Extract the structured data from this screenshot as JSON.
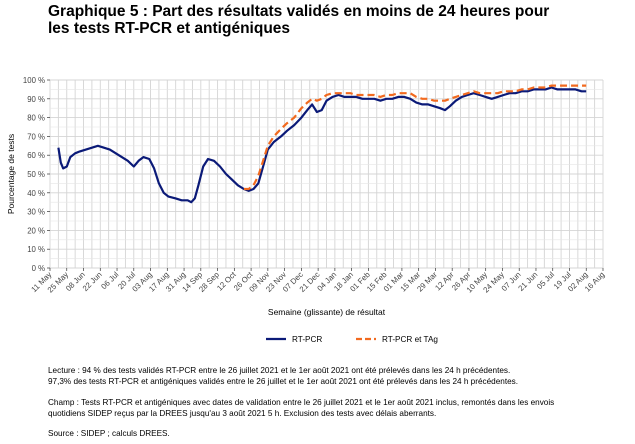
{
  "chart_data": {
    "type": "line",
    "title_line1": "Graphique 5 : Part des résultats validés en moins de 24 heures pour",
    "title_line2": "les tests RT-PCR et antigéniques",
    "ylabel": "Pourcentage de tests",
    "xlabel": "Semaine (glissante) de résultat",
    "ylim": [
      0,
      100
    ],
    "y_ticks": [
      0,
      10,
      20,
      30,
      40,
      50,
      60,
      70,
      80,
      90,
      100
    ],
    "y_tick_labels": [
      "0 %",
      "10 %",
      "20 %",
      "30 %",
      "40 %",
      "50 %",
      "60 %",
      "70 %",
      "80 %",
      "90 %",
      "100 %"
    ],
    "x_range": [
      "2020-05-11",
      "2021-08-16"
    ],
    "x_ticks": [
      "2020-05-11",
      "2020-05-25",
      "2020-06-08",
      "2020-06-22",
      "2020-07-06",
      "2020-07-20",
      "2020-08-03",
      "2020-08-17",
      "2020-08-31",
      "2020-09-14",
      "2020-09-28",
      "2020-10-12",
      "2020-10-26",
      "2020-11-09",
      "2020-11-23",
      "2020-12-07",
      "2020-12-21",
      "2021-01-04",
      "2021-01-18",
      "2021-02-01",
      "2021-02-15",
      "2021-03-01",
      "2021-03-15",
      "2021-03-29",
      "2021-04-12",
      "2021-04-26",
      "2021-05-10",
      "2021-05-24",
      "2021-06-07",
      "2021-06-21",
      "2021-07-05",
      "2021-07-19",
      "2021-08-02",
      "2021-08-16"
    ],
    "x_tick_labels": [
      "11 May",
      "25 May",
      "08 Jun",
      "22 Jun",
      "06 Jul",
      "20 Jul",
      "03 Aug",
      "17 Aug",
      "31 Aug",
      "14 Sep",
      "28 Sep",
      "12 Oct",
      "26 Oct",
      "09 Nov",
      "23 Nov",
      "07 Dec",
      "21 Dec",
      "04 Jan",
      "18 Jan",
      "01 Feb",
      "15 Feb",
      "01 Mar",
      "15 Mar",
      "29 Mar",
      "12 Apr",
      "26 Apr",
      "10 May",
      "24 May",
      "07 Jun",
      "21 Jun",
      "05 Jul",
      "19 Jul",
      "02 Aug",
      "16 Aug"
    ],
    "grid": true,
    "legend_position": "bottom",
    "series": [
      {
        "name": "RT-PCR",
        "color": "#0b1a78",
        "style": "solid",
        "points": [
          [
            "2020-05-18",
            64
          ],
          [
            "2020-05-20",
            56
          ],
          [
            "2020-05-22",
            53
          ],
          [
            "2020-05-25",
            54
          ],
          [
            "2020-05-28",
            59
          ],
          [
            "2020-06-01",
            61
          ],
          [
            "2020-06-05",
            62
          ],
          [
            "2020-06-10",
            63
          ],
          [
            "2020-06-15",
            64
          ],
          [
            "2020-06-20",
            65
          ],
          [
            "2020-06-25",
            64
          ],
          [
            "2020-06-30",
            63
          ],
          [
            "2020-07-05",
            61
          ],
          [
            "2020-07-10",
            59
          ],
          [
            "2020-07-15",
            57
          ],
          [
            "2020-07-20",
            54
          ],
          [
            "2020-07-24",
            57
          ],
          [
            "2020-07-28",
            59
          ],
          [
            "2020-08-02",
            58
          ],
          [
            "2020-08-06",
            53
          ],
          [
            "2020-08-10",
            45
          ],
          [
            "2020-08-14",
            40
          ],
          [
            "2020-08-18",
            38
          ],
          [
            "2020-08-24",
            37
          ],
          [
            "2020-08-29",
            36
          ],
          [
            "2020-09-03",
            36
          ],
          [
            "2020-09-06",
            35
          ],
          [
            "2020-09-09",
            37
          ],
          [
            "2020-09-12",
            44
          ],
          [
            "2020-09-16",
            54
          ],
          [
            "2020-09-20",
            58
          ],
          [
            "2020-09-25",
            57
          ],
          [
            "2020-09-30",
            54
          ],
          [
            "2020-10-05",
            50
          ],
          [
            "2020-10-10",
            47
          ],
          [
            "2020-10-15",
            44
          ],
          [
            "2020-10-20",
            42
          ],
          [
            "2020-10-24",
            41
          ],
          [
            "2020-10-28",
            42
          ],
          [
            "2020-11-01",
            45
          ],
          [
            "2020-11-05",
            54
          ],
          [
            "2020-11-09",
            63
          ],
          [
            "2020-11-14",
            67
          ],
          [
            "2020-11-20",
            70
          ],
          [
            "2020-11-25",
            73
          ],
          [
            "2020-12-01",
            76
          ],
          [
            "2020-12-07",
            80
          ],
          [
            "2020-12-12",
            84
          ],
          [
            "2020-12-16",
            87
          ],
          [
            "2020-12-20",
            83
          ],
          [
            "2020-12-24",
            84
          ],
          [
            "2020-12-28",
            89
          ],
          [
            "2021-01-02",
            91
          ],
          [
            "2021-01-07",
            92
          ],
          [
            "2021-01-12",
            91
          ],
          [
            "2021-01-17",
            91
          ],
          [
            "2021-01-22",
            91
          ],
          [
            "2021-01-27",
            90
          ],
          [
            "2021-02-01",
            90
          ],
          [
            "2021-02-06",
            90
          ],
          [
            "2021-02-11",
            89
          ],
          [
            "2021-02-16",
            90
          ],
          [
            "2021-02-21",
            90
          ],
          [
            "2021-02-26",
            91
          ],
          [
            "2021-03-03",
            91
          ],
          [
            "2021-03-08",
            90
          ],
          [
            "2021-03-13",
            88
          ],
          [
            "2021-03-18",
            87
          ],
          [
            "2021-03-23",
            87
          ],
          [
            "2021-03-28",
            86
          ],
          [
            "2021-04-02",
            85
          ],
          [
            "2021-04-06",
            84
          ],
          [
            "2021-04-10",
            86
          ],
          [
            "2021-04-15",
            89
          ],
          [
            "2021-04-20",
            91
          ],
          [
            "2021-04-25",
            92
          ],
          [
            "2021-04-30",
            93
          ],
          [
            "2021-05-05",
            92
          ],
          [
            "2021-05-10",
            91
          ],
          [
            "2021-05-15",
            90
          ],
          [
            "2021-05-20",
            91
          ],
          [
            "2021-05-25",
            92
          ],
          [
            "2021-05-30",
            93
          ],
          [
            "2021-06-04",
            93
          ],
          [
            "2021-06-09",
            94
          ],
          [
            "2021-06-14",
            94
          ],
          [
            "2021-06-19",
            95
          ],
          [
            "2021-06-24",
            95
          ],
          [
            "2021-06-29",
            95
          ],
          [
            "2021-07-04",
            96
          ],
          [
            "2021-07-09",
            95
          ],
          [
            "2021-07-14",
            95
          ],
          [
            "2021-07-19",
            95
          ],
          [
            "2021-07-24",
            95
          ],
          [
            "2021-07-29",
            94
          ],
          [
            "2021-08-02",
            94
          ]
        ]
      },
      {
        "name": "RT-PCR et TAg",
        "color": "#f26a1f",
        "style": "dashed",
        "points": [
          [
            "2020-10-20",
            42
          ],
          [
            "2020-10-24",
            42
          ],
          [
            "2020-10-28",
            44
          ],
          [
            "2020-11-01",
            49
          ],
          [
            "2020-11-05",
            57
          ],
          [
            "2020-11-09",
            65
          ],
          [
            "2020-11-14",
            70
          ],
          [
            "2020-11-20",
            74
          ],
          [
            "2020-11-25",
            77
          ],
          [
            "2020-12-01",
            80
          ],
          [
            "2020-12-07",
            85
          ],
          [
            "2020-12-12",
            88
          ],
          [
            "2020-12-16",
            90
          ],
          [
            "2020-12-20",
            89
          ],
          [
            "2020-12-24",
            90
          ],
          [
            "2020-12-28",
            92
          ],
          [
            "2021-01-02",
            93
          ],
          [
            "2021-01-07",
            93
          ],
          [
            "2021-01-12",
            93
          ],
          [
            "2021-01-17",
            93
          ],
          [
            "2021-01-22",
            92
          ],
          [
            "2021-01-27",
            92
          ],
          [
            "2021-02-01",
            92
          ],
          [
            "2021-02-06",
            92
          ],
          [
            "2021-02-11",
            91
          ],
          [
            "2021-02-16",
            92
          ],
          [
            "2021-02-21",
            92
          ],
          [
            "2021-02-26",
            93
          ],
          [
            "2021-03-03",
            93
          ],
          [
            "2021-03-08",
            93
          ],
          [
            "2021-03-13",
            91
          ],
          [
            "2021-03-18",
            90
          ],
          [
            "2021-03-23",
            90
          ],
          [
            "2021-03-28",
            89
          ],
          [
            "2021-04-02",
            89
          ],
          [
            "2021-04-06",
            89
          ],
          [
            "2021-04-10",
            90
          ],
          [
            "2021-04-15",
            91
          ],
          [
            "2021-04-20",
            92
          ],
          [
            "2021-04-25",
            93
          ],
          [
            "2021-04-30",
            94
          ],
          [
            "2021-05-05",
            93
          ],
          [
            "2021-05-10",
            93
          ],
          [
            "2021-05-15",
            93
          ],
          [
            "2021-05-20",
            93
          ],
          [
            "2021-05-25",
            94
          ],
          [
            "2021-05-30",
            94
          ],
          [
            "2021-06-04",
            94
          ],
          [
            "2021-06-09",
            95
          ],
          [
            "2021-06-14",
            95
          ],
          [
            "2021-06-19",
            96
          ],
          [
            "2021-06-24",
            96
          ],
          [
            "2021-06-29",
            96
          ],
          [
            "2021-07-04",
            97
          ],
          [
            "2021-07-09",
            97
          ],
          [
            "2021-07-14",
            97
          ],
          [
            "2021-07-19",
            97
          ],
          [
            "2021-07-24",
            97
          ],
          [
            "2021-07-29",
            97
          ],
          [
            "2021-08-02",
            97
          ]
        ]
      }
    ]
  },
  "notes": {
    "lecture_1": "Lecture : 94 % des tests validés RT-PCR entre le 26 juillet 2021 et le 1er août 2021 ont été prélevés dans les 24 h précédentes.",
    "lecture_2": "97,3% des tests RT-PCR et antigéniques validés entre le 26 juillet et le 1er août 2021 ont été prélevés dans les 24 h précédentes.",
    "champ_1": "Champ : Tests RT-PCR et antigéniques avec dates de validation entre le 26 juillet 2021 et le 1er août 2021 inclus, remontés dans les envois",
    "champ_2": "quotidiens SIDEP reçus par la DREES jusqu'au 3 août 2021 5 h. Exclusion des tests avec délais aberrants.",
    "source": "Source : SIDEP ; calculs DREES."
  }
}
